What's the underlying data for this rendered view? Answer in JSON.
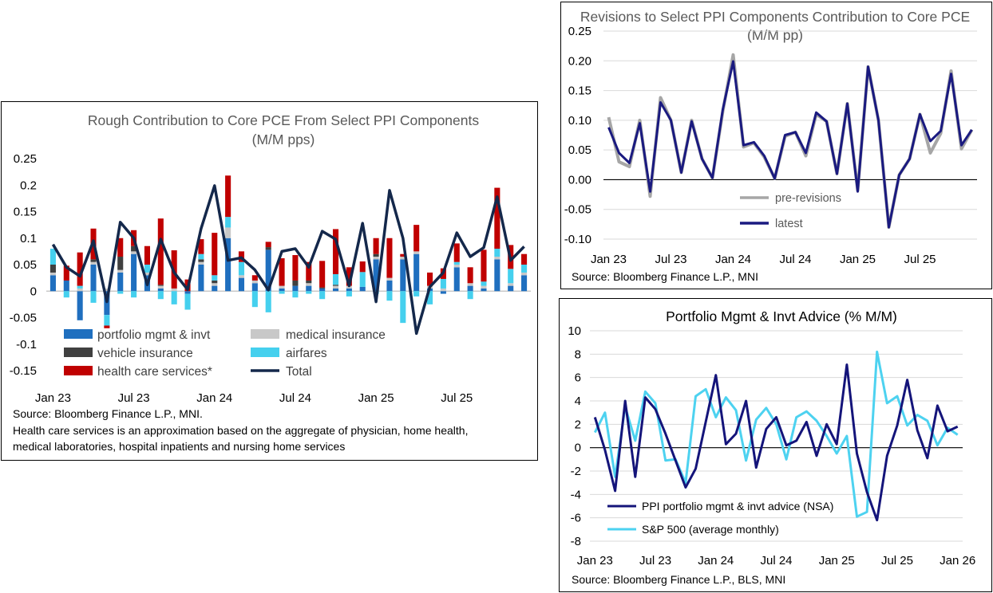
{
  "colors": {
    "portfolio": "#1f6fbf",
    "medical": "#c8c8c8",
    "vehicle": "#404040",
    "airfares": "#45d0ee",
    "health": "#c00000",
    "total": "#14284b",
    "pre_revisions": "#a6a6a6",
    "latest": "#1a1a80",
    "ppi": "#14147a",
    "sp500": "#4dd2f0"
  },
  "chart_data": [
    {
      "type": "bar",
      "stacked": true,
      "title": "Rough Contribution to Core PCE From Select PPI Components",
      "subtitle": "(M/M pps)",
      "ylim": [
        -0.15,
        0.25
      ],
      "yticks": [
        "0.25",
        "0.2",
        "0.15",
        "0.1",
        "0.05",
        "0",
        "-0.05",
        "-0.1",
        "-0.15"
      ],
      "xticks": [
        {
          "i": 0,
          "label": "Jan 23"
        },
        {
          "i": 6,
          "label": "Jul 23"
        },
        {
          "i": 12,
          "label": "Jan 24"
        },
        {
          "i": 18,
          "label": "Jul 24"
        },
        {
          "i": 24,
          "label": "Jan 25"
        },
        {
          "i": 30,
          "label": "Jul 25"
        }
      ],
      "series": [
        {
          "name": "portfolio mgmt & invt",
          "key": "portfolio",
          "values": [
            0.03,
            0.02,
            -0.055,
            0.05,
            -0.045,
            0.035,
            0.07,
            0.03,
            0.005,
            0,
            -0.005,
            0.05,
            0.01,
            0.1,
            0.025,
            0.015,
            0.078,
            0.005,
            0.01,
            0.01,
            0.005,
            0.005,
            0.005,
            0.008,
            0.06,
            0.02,
            0.06,
            0.07,
            0.005,
            -0.005,
            0.045,
            0.01,
            0.005,
            0.06,
            0.01,
            0.03
          ]
        },
        {
          "name": "medical insurance",
          "key": "medical",
          "values": [
            0.005,
            0,
            0.005,
            0.005,
            0.005,
            0.005,
            0.005,
            0.005,
            0.005,
            0.005,
            0,
            0.005,
            0.005,
            0.02,
            0.005,
            0.005,
            0,
            0.005,
            0,
            0.005,
            0,
            0.005,
            0.005,
            0,
            0.005,
            0.005,
            0.005,
            0.005,
            0.005,
            0.005,
            0.005,
            0.005,
            0.005,
            0.005,
            0.005,
            0.005
          ]
        },
        {
          "name": "vehicle insurance",
          "key": "vehicle",
          "values": [
            0.015,
            0,
            0,
            0.005,
            0,
            0.025,
            0.01,
            0,
            0.002,
            0,
            0,
            0.005,
            0.005,
            0,
            0,
            0,
            0.005,
            0,
            0.01,
            0.005,
            0.002,
            0.002,
            0,
            0,
            0.005,
            0,
            0,
            0,
            0,
            0,
            0,
            0,
            0,
            0,
            0,
            0
          ]
        },
        {
          "name": "airfares",
          "key": "airfares",
          "values": [
            0.03,
            -0.012,
            0.005,
            -0.022,
            -0.02,
            -0.005,
            -0.012,
            0.015,
            -0.015,
            -0.025,
            -0.03,
            0.01,
            0.01,
            0.02,
            0.025,
            -0.03,
            -0.04,
            -0.005,
            -0.012,
            -0.005,
            -0.015,
            0.02,
            -0.01,
            0.028,
            -0.005,
            -0.018,
            -0.06,
            -0.01,
            -0.025,
            0.018,
            0.005,
            -0.015,
            0.008,
            0.015,
            0.027,
            0.015
          ]
        },
        {
          "name": "health care services*",
          "key": "health",
          "values": [
            0,
            0.028,
            0.063,
            0.058,
            -0.005,
            0.035,
            0.03,
            0.035,
            0.125,
            0.072,
            0.022,
            0.028,
            0.08,
            0.078,
            0.02,
            0.01,
            0.01,
            0.052,
            0.048,
            0.035,
            0.05,
            0.085,
            0.035,
            0.02,
            0.03,
            0.075,
            0.005,
            0.05,
            0.025,
            0.02,
            0.035,
            0.03,
            0.06,
            0.115,
            0.045,
            0.02
          ]
        },
        {
          "name": "Total",
          "key": "total",
          "type": "line",
          "values": [
            0.088,
            0.045,
            0.028,
            0.095,
            -0.02,
            0.13,
            0.1,
            0.012,
            0.098,
            0.035,
            0.003,
            0.118,
            0.199,
            0.058,
            0.063,
            0.04,
            0.002,
            0.075,
            0.08,
            0.045,
            0.113,
            0.098,
            0.01,
            0.128,
            -0.02,
            0.19,
            0.1,
            -0.08,
            0.008,
            0.035,
            0.11,
            0.065,
            0.082,
            0.178,
            0.058,
            0.084
          ]
        }
      ],
      "legend": [
        "portfolio mgmt & invt",
        "medical insurance",
        "vehicle insurance",
        "airfares",
        "health care services*",
        "Total"
      ],
      "source": "Source: Bloomberg Finance L.P., MNI.",
      "note_line1": "Health care services is an approximation based on the aggregate of physician, home health,",
      "note_line2": "medical laboratories, hospital inpatients and nursing home services"
    },
    {
      "type": "line",
      "title": "Revisions to Select PPI Components Contribution to Core PCE",
      "subtitle": "(M/M pp)",
      "ylim": [
        -0.1,
        0.25
      ],
      "yticks": [
        "0.25",
        "0.20",
        "0.15",
        "0.10",
        "0.05",
        "0.00",
        "-0.05",
        "-0.10"
      ],
      "xticks": [
        {
          "i": 0,
          "label": "Jan 23"
        },
        {
          "i": 6,
          "label": "Jul 23"
        },
        {
          "i": 12,
          "label": "Jan 24"
        },
        {
          "i": 18,
          "label": "Jul 24"
        },
        {
          "i": 24,
          "label": "Jan 25"
        },
        {
          "i": 30,
          "label": "Jul 25"
        }
      ],
      "series": [
        {
          "name": "pre-revisions",
          "key": "pre_revisions",
          "values": [
            0.105,
            0.03,
            0.022,
            0.1,
            -0.028,
            0.138,
            0.1,
            0.012,
            0.1,
            0.035,
            0.003,
            0.115,
            0.21,
            0.055,
            0.062,
            0.038,
            0.002,
            0.073,
            0.08,
            0.04,
            0.11,
            0.098,
            0.01,
            0.128,
            -0.018,
            0.19,
            0.1,
            -0.08,
            0.008,
            0.035,
            0.11,
            0.045,
            0.078,
            0.183,
            0.052,
            0.084
          ]
        },
        {
          "name": "latest",
          "key": "latest",
          "values": [
            0.088,
            0.045,
            0.028,
            0.095,
            -0.02,
            0.13,
            0.1,
            0.012,
            0.098,
            0.035,
            0.003,
            0.118,
            0.199,
            0.058,
            0.063,
            0.04,
            0.002,
            0.075,
            0.08,
            0.045,
            0.113,
            0.098,
            0.01,
            0.128,
            -0.02,
            0.19,
            0.1,
            -0.08,
            0.008,
            0.035,
            0.11,
            0.065,
            0.082,
            0.178,
            0.058,
            0.084
          ]
        }
      ],
      "source": "Source: Bloomberg Finance L.P., MNI"
    },
    {
      "type": "line",
      "title": "Portfolio Mgmt & Invt Advice (% M/M)",
      "ylim": [
        -8,
        10
      ],
      "yticks": [
        "10",
        "8",
        "6",
        "4",
        "2",
        "0",
        "-2",
        "-4",
        "-6",
        "-8"
      ],
      "xticks": [
        {
          "i": 0,
          "label": "Jan 23"
        },
        {
          "i": 6,
          "label": "Jul 23"
        },
        {
          "i": 12,
          "label": "Jan 24"
        },
        {
          "i": 18,
          "label": "Jul 24"
        },
        {
          "i": 24,
          "label": "Jan 25"
        },
        {
          "i": 30,
          "label": "Jul 25"
        },
        {
          "i": 36,
          "label": "Jan 26"
        }
      ],
      "series": [
        {
          "name": "PPI portfolio mgmt & invt advice (NSA)",
          "key": "ppi",
          "values": [
            2.6,
            -0.2,
            -3.7,
            4.0,
            -2.5,
            4.3,
            3.3,
            1.2,
            -1.1,
            -3.4,
            -1.8,
            2.2,
            6.2,
            0.3,
            1.2,
            4.0,
            -1.7,
            1.6,
            2.6,
            0.2,
            0.6,
            2.2,
            -0.7,
            2.0,
            0.3,
            7.1,
            -0.5,
            -3.8,
            -6.2,
            -0.7,
            1.9,
            5.8,
            1.5,
            -0.9,
            3.6,
            1.4,
            1.8
          ]
        },
        {
          "name": "S&P 500 (average monthly)",
          "key": "sp500",
          "values": [
            1.3,
            3.0,
            -2.5,
            3.5,
            0.6,
            4.8,
            3.8,
            -1.1,
            -1.0,
            -3.0,
            4.4,
            5.0,
            2.6,
            4.3,
            3.2,
            -1.1,
            2.4,
            3.4,
            2.0,
            -1.0,
            2.6,
            3.1,
            2.3,
            1.0,
            -0.5,
            1.0,
            -5.9,
            -5.5,
            8.2,
            3.8,
            4.4,
            1.9,
            2.8,
            2.3,
            0.2,
            1.7,
            1.1
          ]
        }
      ],
      "source": "Source: Bloomberg Finance L.P., BLS, MNI"
    }
  ]
}
